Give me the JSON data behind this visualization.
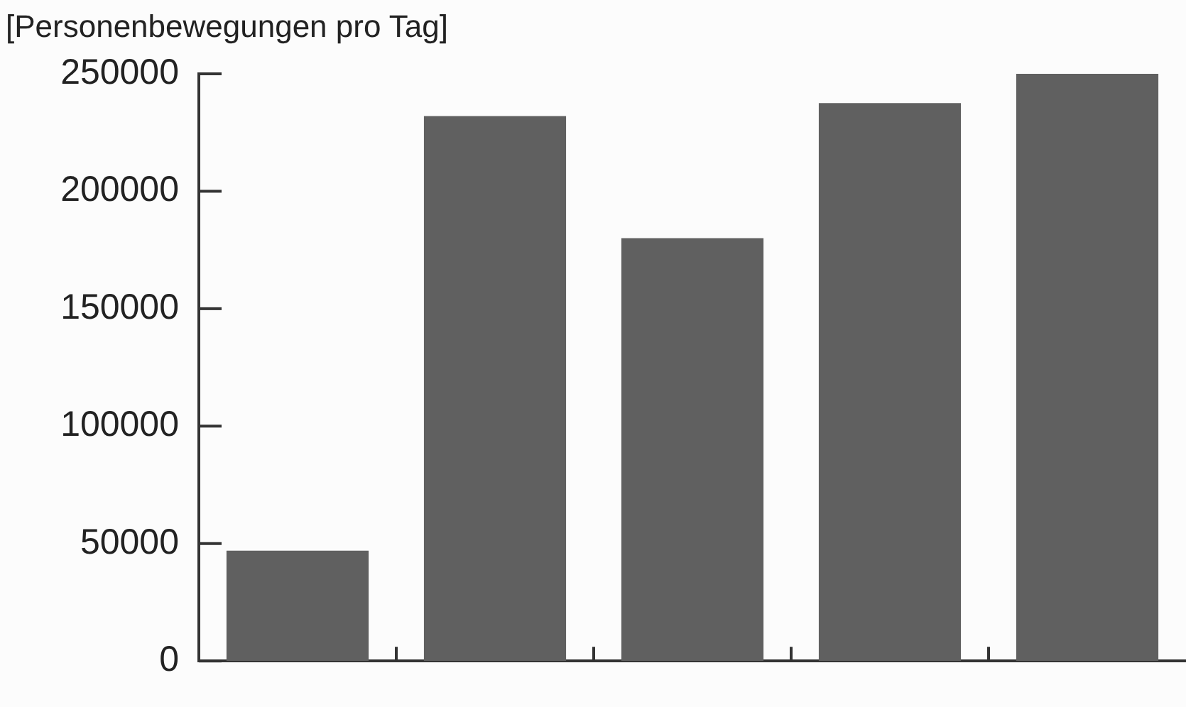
{
  "chart_data": {
    "type": "bar",
    "ylabel": "[Personenbewegungen pro Tag]",
    "categories": [
      null,
      null,
      null,
      null,
      null
    ],
    "values": [
      47000,
      232000,
      180000,
      237500,
      250000
    ],
    "color": "#606060",
    "ylim": [
      0,
      250000
    ],
    "yticks": [
      0,
      50000,
      100000,
      150000,
      200000,
      250000
    ],
    "grid": false,
    "legend": false
  }
}
